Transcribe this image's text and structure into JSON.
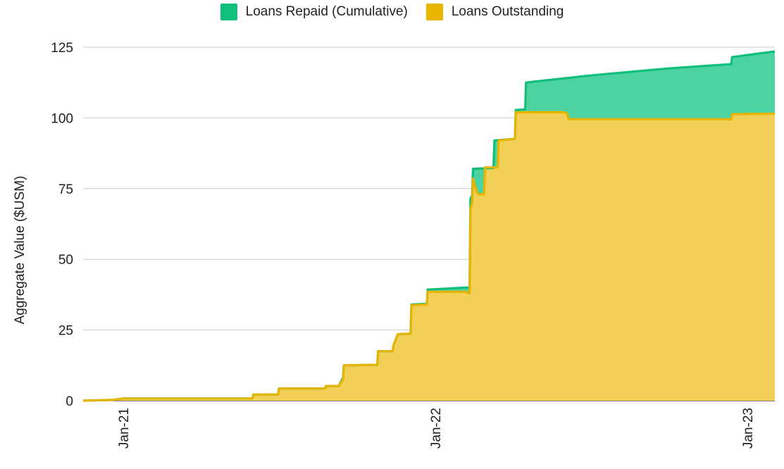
{
  "chart_data": {
    "type": "area",
    "title": "",
    "xlabel": "",
    "ylabel": "Aggregate Value ($USM)",
    "ylim": [
      0,
      125
    ],
    "yticks": [
      0,
      25,
      50,
      75,
      100,
      125
    ],
    "xticks": [
      "Jan-21",
      "Jan-22",
      "Jan-23"
    ],
    "grid": true,
    "legend_position": "top",
    "stacked": "overlay",
    "series": [
      {
        "name": "Loans Repaid (Cumulative)",
        "color": "#0fbf7a",
        "fill": "#4dd3a1",
        "points": [
          [
            "2020-11-15",
            0
          ],
          [
            "2020-12-20",
            0.3
          ],
          [
            "2021-01-01",
            0.8
          ],
          [
            "2021-06-01",
            0.8
          ],
          [
            "2021-06-02",
            2.2
          ],
          [
            "2021-07-01",
            2.2
          ],
          [
            "2021-07-02",
            4.3
          ],
          [
            "2021-08-25",
            4.3
          ],
          [
            "2021-08-26",
            5.2
          ],
          [
            "2021-09-10",
            5.2
          ],
          [
            "2021-09-15",
            8.2
          ],
          [
            "2021-09-16",
            12.5
          ],
          [
            "2021-10-25",
            12.7
          ],
          [
            "2021-10-26",
            17.5
          ],
          [
            "2021-11-12",
            17.5
          ],
          [
            "2021-11-13",
            19.5
          ],
          [
            "2021-11-18",
            23.5
          ],
          [
            "2021-12-03",
            23.7
          ],
          [
            "2021-12-04",
            34.0
          ],
          [
            "2021-12-22",
            34.3
          ],
          [
            "2021-12-23",
            39.3
          ],
          [
            "2022-02-05",
            40.0
          ],
          [
            "2022-02-10",
            40.0
          ],
          [
            "2022-02-11",
            71.5
          ],
          [
            "2022-02-13",
            72.5
          ],
          [
            "2022-02-14",
            82.0
          ],
          [
            "2022-03-10",
            82.3
          ],
          [
            "2022-03-11",
            92.0
          ],
          [
            "2022-04-04",
            92.6
          ],
          [
            "2022-04-05",
            102.8
          ],
          [
            "2022-04-16",
            103.0
          ],
          [
            "2022-04-17",
            112.5
          ],
          [
            "2022-07-01",
            115.0
          ],
          [
            "2022-10-01",
            117.5
          ],
          [
            "2022-12-13",
            119.0
          ],
          [
            "2022-12-14",
            121.5
          ],
          [
            "2023-02-02",
            123.5
          ]
        ]
      },
      {
        "name": "Loans Outstanding",
        "color": "#e8b400",
        "fill": "#f2cf57",
        "points": [
          [
            "2020-11-15",
            0
          ],
          [
            "2020-12-20",
            0.3
          ],
          [
            "2021-01-01",
            0.8
          ],
          [
            "2021-06-01",
            0.8
          ],
          [
            "2021-06-02",
            2.2
          ],
          [
            "2021-07-01",
            2.2
          ],
          [
            "2021-07-02",
            4.3
          ],
          [
            "2021-08-25",
            4.3
          ],
          [
            "2021-08-26",
            5.2
          ],
          [
            "2021-09-10",
            5.2
          ],
          [
            "2021-09-15",
            7.5
          ],
          [
            "2021-09-16",
            12.5
          ],
          [
            "2021-10-25",
            12.7
          ],
          [
            "2021-10-26",
            17.5
          ],
          [
            "2021-11-12",
            17.5
          ],
          [
            "2021-11-13",
            19.5
          ],
          [
            "2021-11-18",
            23.5
          ],
          [
            "2021-12-03",
            23.7
          ],
          [
            "2021-12-04",
            33.8
          ],
          [
            "2021-12-22",
            34.0
          ],
          [
            "2021-12-23",
            38.5
          ],
          [
            "2022-02-05",
            38.5
          ],
          [
            "2022-02-10",
            38.0
          ],
          [
            "2022-02-11",
            68.0
          ],
          [
            "2022-02-13",
            70.0
          ],
          [
            "2022-02-14",
            78.5
          ],
          [
            "2022-02-17",
            75.0
          ],
          [
            "2022-02-20",
            73.0
          ],
          [
            "2022-02-27",
            73.0
          ],
          [
            "2022-02-28",
            82.5
          ],
          [
            "2022-03-15",
            82.5
          ],
          [
            "2022-03-16",
            92.0
          ],
          [
            "2022-04-04",
            92.6
          ],
          [
            "2022-04-05",
            102.0
          ],
          [
            "2022-05-31",
            102.0
          ],
          [
            "2022-06-04",
            101.5
          ],
          [
            "2022-06-06",
            99.5
          ],
          [
            "2022-12-13",
            99.5
          ],
          [
            "2022-12-14",
            101.3
          ],
          [
            "2023-02-02",
            101.5
          ]
        ]
      }
    ]
  }
}
